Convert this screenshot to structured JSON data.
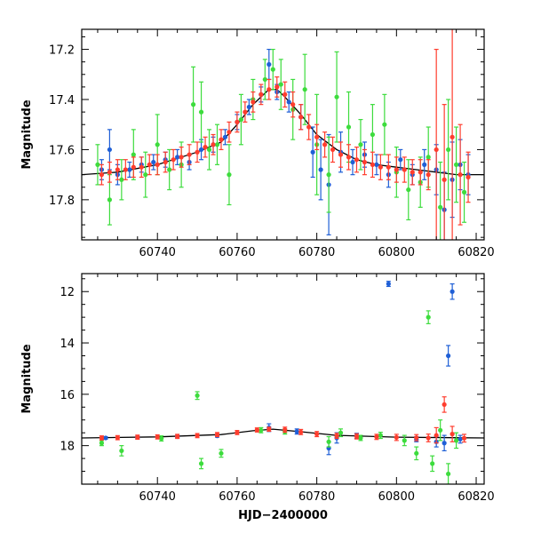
{
  "chart_data": [
    {
      "type": "scatter",
      "ylabel": "Magnitude",
      "xlabel": "",
      "xlim": [
        60721,
        60822
      ],
      "ylim": [
        17.96,
        17.12
      ],
      "y_inverted": true,
      "xticks": [
        60740,
        60760,
        60780,
        60800,
        60820
      ],
      "yticks": [
        17.2,
        17.4,
        17.6,
        17.8
      ],
      "model_curve": {
        "color": "#000000",
        "x": [
          60721,
          60730,
          60740,
          60750,
          60756,
          60760,
          60764,
          60768,
          60770,
          60772,
          60776,
          60780,
          60785,
          60790,
          60795,
          60800,
          60805,
          60810,
          60815,
          60822
        ],
        "y": [
          17.7,
          17.69,
          17.66,
          17.61,
          17.57,
          17.5,
          17.42,
          17.36,
          17.36,
          17.39,
          17.46,
          17.54,
          17.6,
          17.64,
          17.66,
          17.67,
          17.68,
          17.69,
          17.7,
          17.7
        ]
      },
      "series": [
        {
          "color": "#1f5fd6",
          "x": [
            60726,
            60728,
            60730,
            60733,
            60736,
            60739,
            60742,
            60745,
            60748,
            60751,
            60754,
            60757,
            60760,
            60763,
            60766,
            60768,
            60770,
            60773,
            60776,
            60779,
            60781,
            60783,
            60786,
            60789,
            60792,
            60795,
            60798,
            60801,
            60804,
            60807,
            60810,
            60812,
            60814,
            60816,
            60818
          ],
          "y": [
            17.68,
            17.6,
            17.7,
            17.68,
            17.66,
            17.65,
            17.64,
            17.63,
            17.65,
            17.6,
            17.58,
            17.55,
            17.49,
            17.43,
            17.38,
            17.26,
            17.37,
            17.41,
            17.47,
            17.61,
            17.68,
            17.74,
            17.61,
            17.65,
            17.62,
            17.66,
            17.7,
            17.64,
            17.7,
            17.66,
            17.68,
            17.84,
            17.72,
            17.66,
            17.7
          ],
          "err": [
            0.04,
            0.08,
            0.04,
            0.03,
            0.03,
            0.03,
            0.03,
            0.03,
            0.03,
            0.04,
            0.03,
            0.03,
            0.03,
            0.03,
            0.03,
            0.06,
            0.03,
            0.04,
            0.05,
            0.1,
            0.12,
            0.2,
            0.08,
            0.05,
            0.05,
            0.04,
            0.05,
            0.04,
            0.04,
            0.06,
            0.1,
            0.15,
            0.15,
            0.1,
            0.08
          ]
        },
        {
          "color": "#3ddc3d",
          "x": [
            60725,
            60728,
            60731,
            60734,
            60737,
            60740,
            60743,
            60746,
            60749,
            60751,
            60753,
            60755,
            60758,
            60761,
            60764,
            60767,
            60769,
            60771,
            60774,
            60777,
            60780,
            60783,
            60785,
            60788,
            60791,
            60794,
            60797,
            60800,
            60803,
            60806,
            60808,
            60811,
            60813,
            60815,
            60817
          ],
          "y": [
            17.66,
            17.8,
            17.72,
            17.62,
            17.7,
            17.58,
            17.68,
            17.66,
            17.42,
            17.45,
            17.6,
            17.58,
            17.7,
            17.48,
            17.4,
            17.32,
            17.28,
            17.34,
            17.44,
            17.36,
            17.58,
            17.7,
            17.39,
            17.51,
            17.58,
            17.54,
            17.5,
            17.69,
            17.76,
            17.73,
            17.63,
            17.83,
            17.6,
            17.66,
            17.77
          ],
          "err": [
            0.08,
            0.1,
            0.08,
            0.1,
            0.09,
            0.12,
            0.08,
            0.09,
            0.15,
            0.12,
            0.08,
            0.08,
            0.12,
            0.1,
            0.08,
            0.08,
            0.08,
            0.1,
            0.12,
            0.14,
            0.2,
            0.15,
            0.18,
            0.14,
            0.1,
            0.12,
            0.12,
            0.1,
            0.12,
            0.1,
            0.12,
            0.18,
            0.2,
            0.15,
            0.12
          ]
        },
        {
          "color": "#ff3d2e",
          "x": [
            60726,
            60728,
            60730,
            60732,
            60734,
            60736,
            60738,
            60740,
            60742,
            60744,
            60746,
            60748,
            60750,
            60752,
            60754,
            60756,
            60758,
            60760,
            60762,
            60764,
            60766,
            60768,
            60770,
            60772,
            60774,
            60776,
            60778,
            60780,
            60782,
            60784,
            60786,
            60788,
            60790,
            60792,
            60794,
            60796,
            60798,
            60800,
            60802,
            60804,
            60806,
            60808,
            60810,
            60812,
            60814,
            60816,
            60818
          ],
          "y": [
            17.7,
            17.69,
            17.68,
            17.68,
            17.67,
            17.67,
            17.66,
            17.66,
            17.65,
            17.64,
            17.63,
            17.62,
            17.61,
            17.59,
            17.58,
            17.56,
            17.53,
            17.49,
            17.45,
            17.41,
            17.38,
            17.36,
            17.35,
            17.38,
            17.42,
            17.47,
            17.51,
            17.55,
            17.58,
            17.6,
            17.62,
            17.63,
            17.64,
            17.65,
            17.66,
            17.67,
            17.67,
            17.68,
            17.68,
            17.69,
            17.69,
            17.7,
            17.6,
            17.72,
            17.55,
            17.7,
            17.71
          ],
          "err": [
            0.04,
            0.04,
            0.04,
            0.04,
            0.04,
            0.04,
            0.04,
            0.04,
            0.04,
            0.04,
            0.04,
            0.04,
            0.04,
            0.04,
            0.04,
            0.04,
            0.04,
            0.04,
            0.04,
            0.04,
            0.04,
            0.04,
            0.04,
            0.05,
            0.05,
            0.05,
            0.05,
            0.05,
            0.05,
            0.05,
            0.05,
            0.05,
            0.05,
            0.05,
            0.05,
            0.05,
            0.05,
            0.05,
            0.05,
            0.05,
            0.05,
            0.06,
            0.4,
            0.3,
            0.45,
            0.2,
            0.1
          ]
        }
      ]
    },
    {
      "type": "scatter",
      "ylabel": "Magnitude",
      "xlabel": "HJD−2400000",
      "xlim": [
        60721,
        60822
      ],
      "ylim": [
        19.5,
        11.3
      ],
      "y_inverted": true,
      "xticks": [
        60740,
        60760,
        60780,
        60800,
        60820
      ],
      "yticks": [
        12,
        14,
        16,
        18
      ],
      "model_curve": {
        "color": "#000000",
        "x": [
          60721,
          60740,
          60756,
          60764,
          60769,
          60776,
          60785,
          60800,
          60822
        ],
        "y": [
          17.7,
          17.66,
          17.57,
          17.42,
          17.36,
          17.46,
          17.6,
          17.67,
          17.7
        ]
      },
      "series": [
        {
          "color": "#1f5fd6",
          "x": [
            60727,
            60735,
            60745,
            60755,
            60768,
            60775,
            60783,
            60785,
            60790,
            60798,
            60805,
            60810,
            60812,
            60813,
            60814,
            60816
          ],
          "y": [
            17.7,
            17.68,
            17.65,
            17.62,
            17.3,
            17.45,
            18.1,
            17.7,
            17.62,
            11.7,
            17.75,
            17.85,
            17.9,
            14.5,
            12.0,
            17.75
          ],
          "err": [
            0.05,
            0.05,
            0.05,
            0.05,
            0.15,
            0.1,
            0.25,
            0.2,
            0.1,
            0.1,
            0.1,
            0.2,
            0.3,
            0.4,
            0.3,
            0.15
          ]
        },
        {
          "color": "#3ddc3d",
          "x": [
            60726,
            60731,
            60741,
            60750,
            60751,
            60756,
            60766,
            60772,
            60783,
            60786,
            60791,
            60796,
            60802,
            60805,
            60808,
            60809,
            60811,
            60813,
            60815
          ],
          "y": [
            17.9,
            18.2,
            17.72,
            16.05,
            18.7,
            18.3,
            17.4,
            17.45,
            17.85,
            17.5,
            17.7,
            17.6,
            17.8,
            18.3,
            13.0,
            18.7,
            17.4,
            19.1,
            17.8
          ],
          "err": [
            0.1,
            0.2,
            0.1,
            0.15,
            0.2,
            0.15,
            0.1,
            0.1,
            0.2,
            0.15,
            0.1,
            0.12,
            0.2,
            0.25,
            0.25,
            0.3,
            0.4,
            0.4,
            0.3
          ]
        },
        {
          "color": "#ff3d2e",
          "x": [
            60726,
            60730,
            60735,
            60740,
            60745,
            60750,
            60755,
            60760,
            60765,
            60768,
            60772,
            60776,
            60780,
            60785,
            60790,
            60795,
            60800,
            60805,
            60808,
            60810,
            60812,
            60814,
            60817
          ],
          "y": [
            17.7,
            17.69,
            17.67,
            17.66,
            17.64,
            17.61,
            17.57,
            17.49,
            17.39,
            17.36,
            17.38,
            17.47,
            17.55,
            17.62,
            17.64,
            17.66,
            17.68,
            17.69,
            17.7,
            17.6,
            16.4,
            17.55,
            17.71
          ],
          "err": [
            0.08,
            0.08,
            0.08,
            0.08,
            0.08,
            0.08,
            0.08,
            0.08,
            0.08,
            0.08,
            0.1,
            0.1,
            0.1,
            0.1,
            0.1,
            0.1,
            0.12,
            0.12,
            0.15,
            0.3,
            0.3,
            0.3,
            0.15
          ]
        }
      ]
    }
  ]
}
